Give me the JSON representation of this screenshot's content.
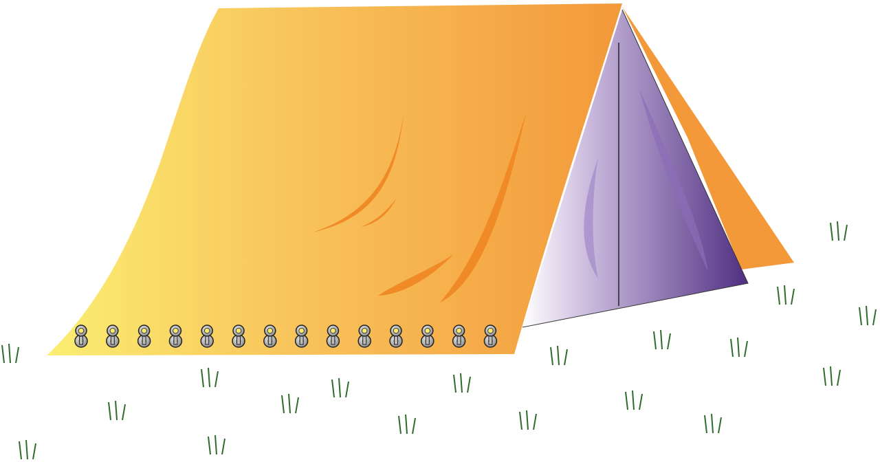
{
  "illustration": {
    "subject": "tent",
    "colors": {
      "tent_light": "#fbe96b",
      "tent_dark": "#f3993a",
      "fold": "#ef8a26",
      "door_light": "#ffffff",
      "door_dark": "#5b3d8c",
      "grommet": "#a9a9a9",
      "grass": "#2f6b2a"
    },
    "grommet_count": 14
  }
}
